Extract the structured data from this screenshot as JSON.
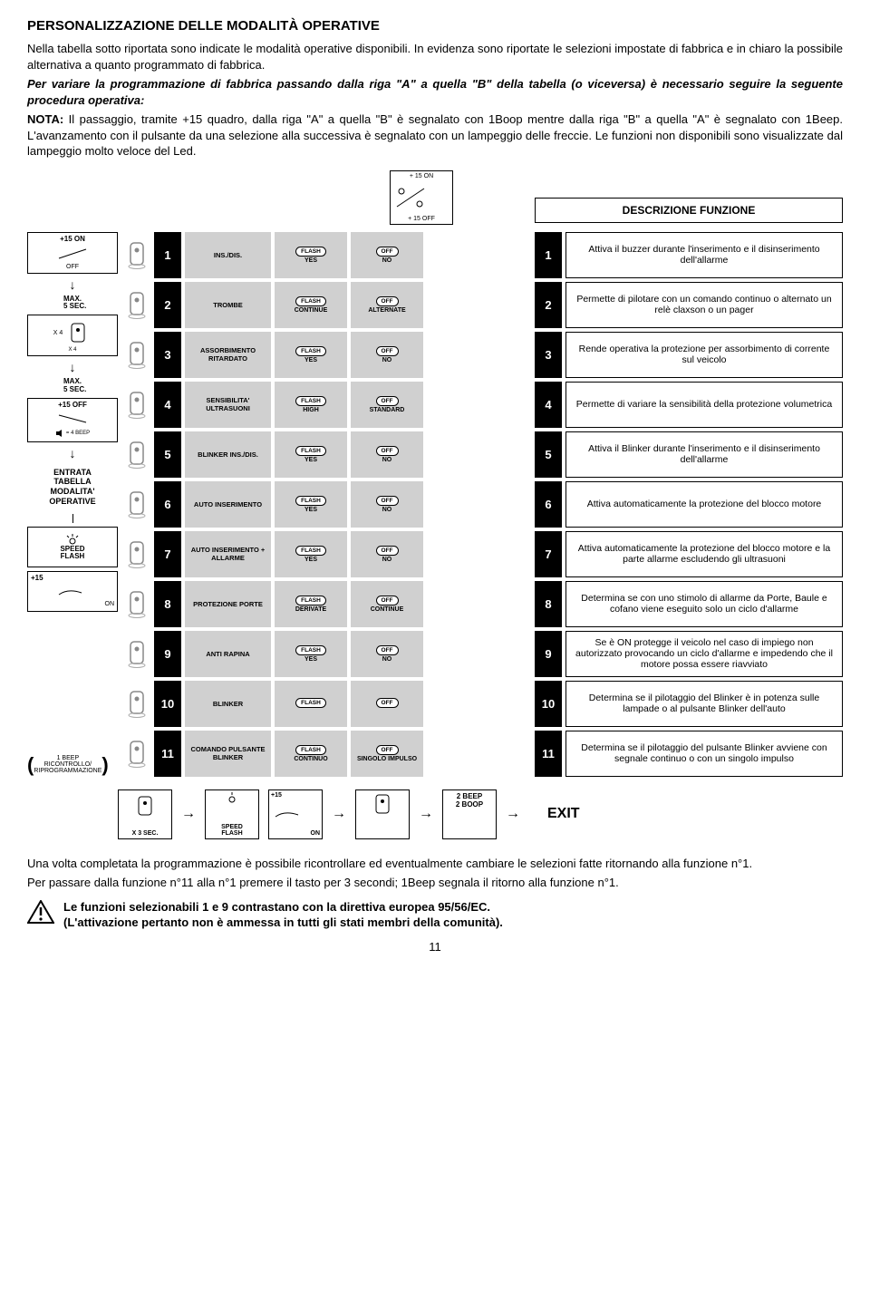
{
  "title": "PERSONALIZZAZIONE DELLE MODALITÀ OPERATIVE",
  "intro": {
    "p1": "Nella tabella sotto riportata sono indicate le modalità operative disponibili. In evidenza sono riportate le selezioni impostate di fabbrica e in chiaro la possibile alternativa a quanto programmato di fabbrica.",
    "p2": "Per variare la programmazione di fabbrica passando dalla riga \"A\" a quella \"B\" della tabella (o viceversa) è necessario seguire la seguente procedura operativa:",
    "note_label": "NOTA:",
    "note": " Il passaggio, tramite +15 quadro, dalla riga \"A\" a quella \"B\" è segnalato con 1Boop mentre dalla riga \"B\" a quella \"A\" è segnalato con 1Beep. L'avanzamento con il pulsante da una selezione alla successiva è segnalato con un lampeggio delle freccie. Le funzioni non disponibili sono visualizzate dal lampeggio molto veloce del Led."
  },
  "top_box": {
    "on": "+ 15 ON",
    "off": "+ 15 OFF"
  },
  "desc_header": "DESCRIZIONE FUNZIONE",
  "left": {
    "box1": {
      "t": "+15 ON",
      "b": "OFF"
    },
    "max5": "MAX.\n5 SEC.",
    "x4": "X 4",
    "box3": "+15 OFF",
    "beep4": "= 4  BEEP",
    "entrata": "ENTRATA\nTABELLA\nMODALITA'\nOPERATIVE",
    "speed": "SPEED\nFLASH",
    "plus15": "+15",
    "on": "ON",
    "ricontrollo": "1 BEEP\nRICONTROLLO/\nRIPROGRAMMAZIONE"
  },
  "rows": [
    {
      "n": "1",
      "name": "INS./DIS.",
      "a": "FLASH",
      "al": "YES",
      "b": "OFF",
      "bl": "NO",
      "desc": "Attiva il buzzer durante l'inserimento e il disinserimento dell'allarme"
    },
    {
      "n": "2",
      "name": "TROMBE",
      "a": "FLASH",
      "al": "CONTINUE",
      "b": "OFF",
      "bl": "ALTERNATE",
      "desc": "Permette di pilotare con un comando continuo o alternato un relè claxson o un pager"
    },
    {
      "n": "3",
      "name": "ASSORBIMENTO RITARDATO",
      "a": "FLASH",
      "al": "YES",
      "b": "OFF",
      "bl": "NO",
      "desc": "Rende operativa la protezione per assorbimento di corrente sul veicolo"
    },
    {
      "n": "4",
      "name": "SENSIBILITA' ULTRASUONI",
      "a": "FLASH",
      "al": "HIGH",
      "b": "OFF",
      "bl": "STANDARD",
      "desc": "Permette di variare la sensibilità della protezione volumetrica"
    },
    {
      "n": "5",
      "name": "BLINKER INS./DIS.",
      "a": "FLASH",
      "al": "YES",
      "b": "OFF",
      "bl": "NO",
      "desc": "Attiva il Blinker durante l'inserimento e il disinserimento dell'allarme"
    },
    {
      "n": "6",
      "name": "AUTO INSERIMENTO",
      "a": "FLASH",
      "al": "YES",
      "b": "OFF",
      "bl": "NO",
      "desc": "Attiva automaticamente la protezione del blocco motore"
    },
    {
      "n": "7",
      "name": "AUTO INSERIMENTO + ALLARME",
      "a": "FLASH",
      "al": "YES",
      "b": "OFF",
      "bl": "NO",
      "desc": "Attiva automaticamente la protezione del blocco motore e la parte allarme escludendo gli ultrasuoni"
    },
    {
      "n": "8",
      "name": "PROTEZIONE PORTE",
      "a": "FLASH",
      "al": "DERIVATE",
      "b": "OFF",
      "bl": "CONTINUE",
      "desc": "Determina se con uno stimolo di allarme da Porte, Baule e cofano viene eseguito solo un ciclo d'allarme"
    },
    {
      "n": "9",
      "name": "ANTI RAPINA",
      "a": "FLASH",
      "al": "YES",
      "b": "OFF",
      "bl": "NO",
      "desc": "Se è ON protegge il veicolo nel caso di impiego non autorizzato provocando un ciclo d'allarme e impedendo che il motore possa essere riavviato"
    },
    {
      "n": "10",
      "name": "BLINKER",
      "a": "FLASH",
      "al": "",
      "b": "OFF",
      "bl": "",
      "desc": "Determina se il pilotaggio del Blinker è in potenza sulle lampade o al pulsante Blinker dell'auto"
    },
    {
      "n": "11",
      "name": "COMANDO PULSANTE BLINKER",
      "a": "FLASH",
      "al": "CONTINUO",
      "b": "OFF",
      "bl": "SINGOLO IMPULSO",
      "desc": "Determina se il pilotaggio del pulsante Blinker avviene con segnale continuo o con un singolo impulso"
    }
  ],
  "exit": {
    "x3": "X 3 SEC.",
    "speed": "SPEED\nFLASH",
    "plus15": "+15",
    "on": "ON",
    "beep": "2 BEEP\n2 BOOP",
    "label": "EXIT"
  },
  "footer": {
    "p1": "Una volta completata la programmazione è possibile ricontrollare ed eventualmente cambiare le selezioni fatte ritornando alla funzione n°1.",
    "p2": "Per passare dalla funzione n°11 alla n°1 premere il tasto per 3 secondi; 1Beep segnala il ritorno alla funzione n°1.",
    "warn1": "Le funzioni selezionabili 1 e 9 contrastano con la direttiva europea 95/56/EC.",
    "warn2": "(L'attivazione pertanto non è ammessa in tutti gli stati membri della comunità)."
  },
  "page": "11"
}
